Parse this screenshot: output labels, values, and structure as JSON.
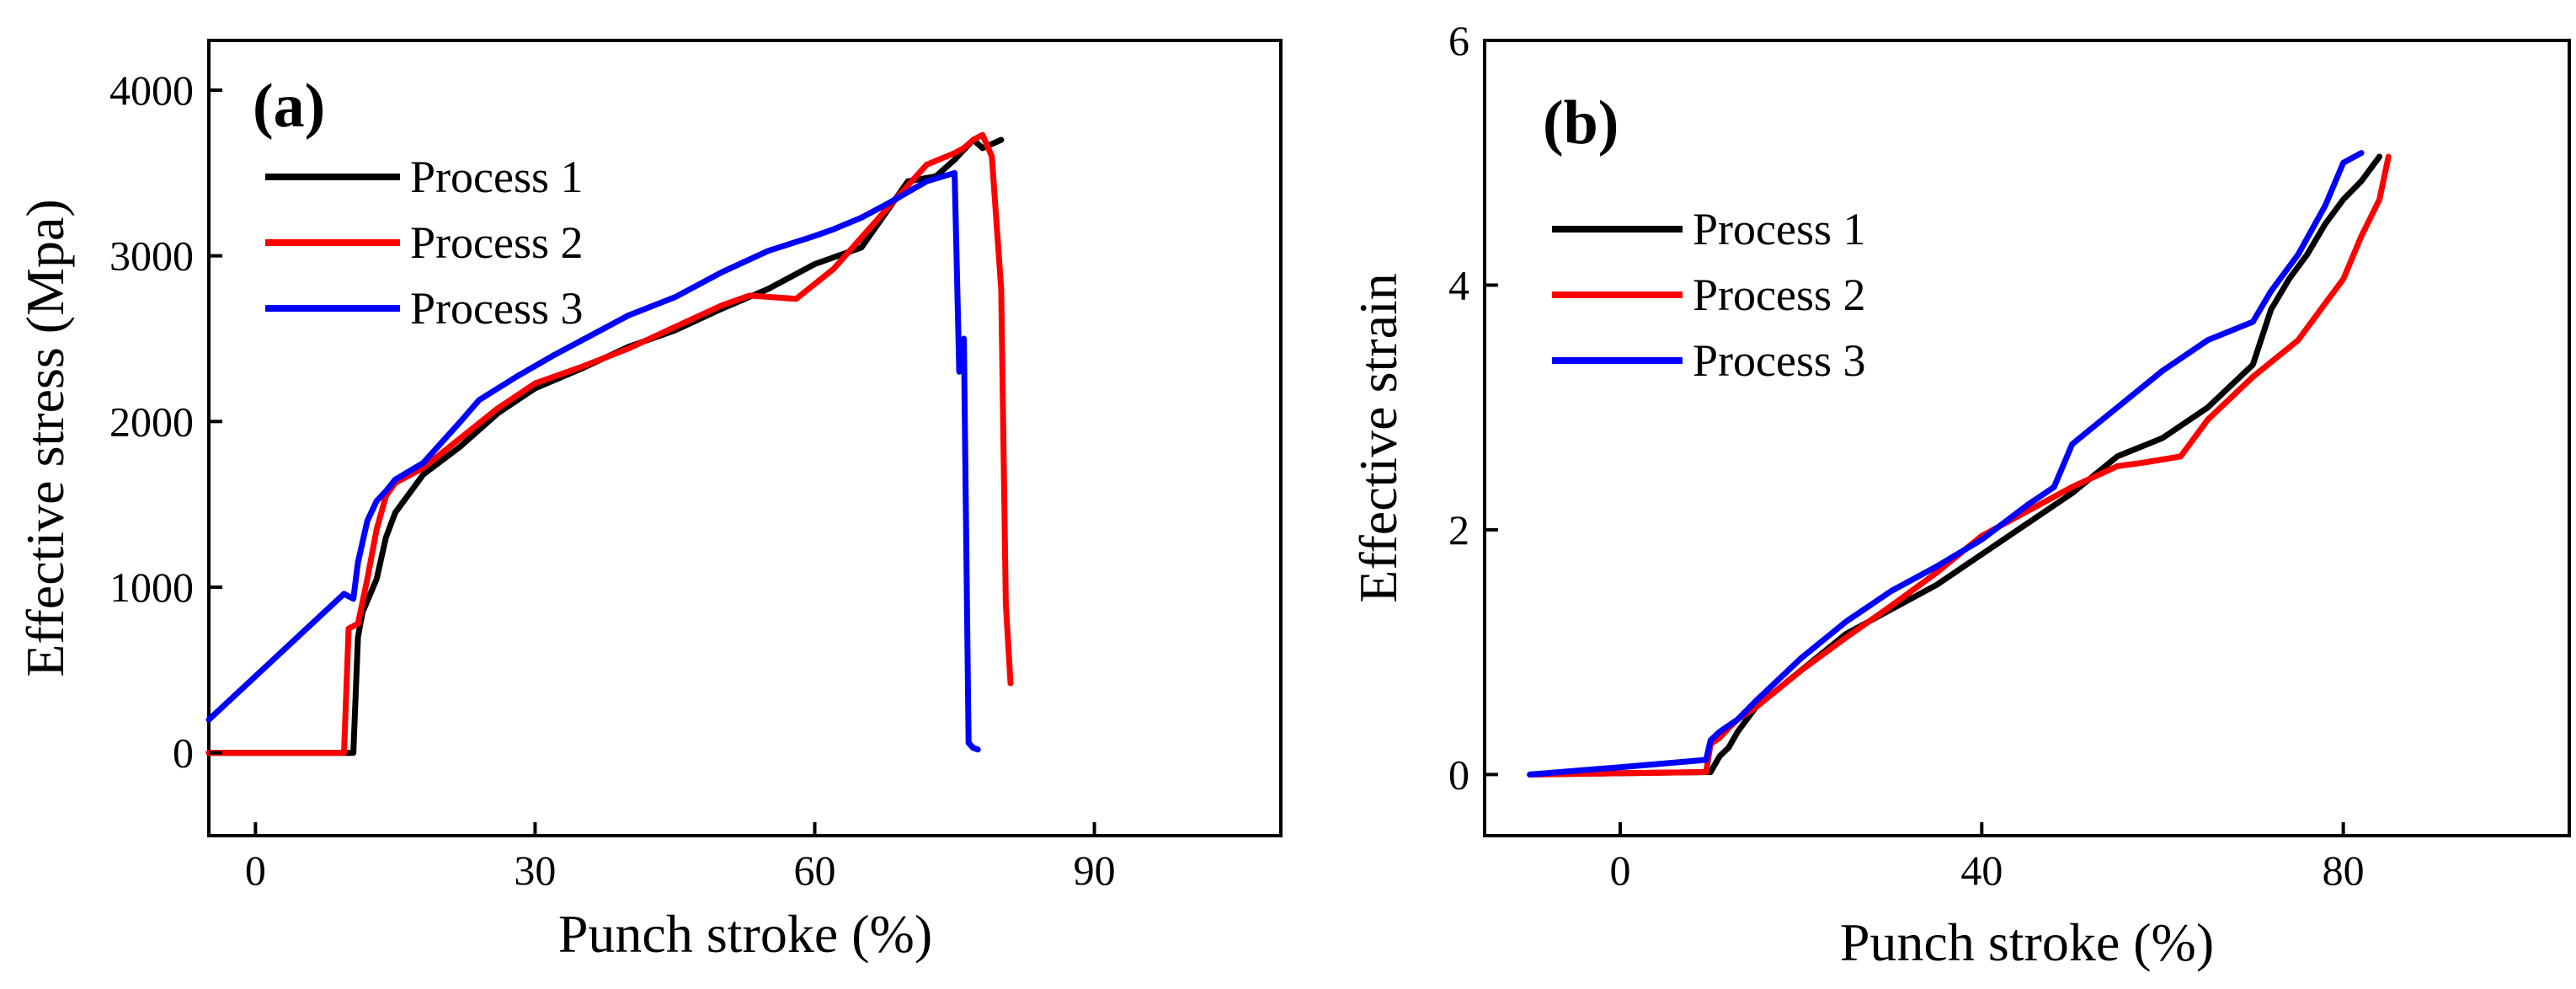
{
  "chart_data": [
    {
      "type": "line",
      "panel_label": "(a)",
      "xlabel": "Punch stroke (%)",
      "ylabel": "Effective stress (Mpa)",
      "xlim": [
        -5,
        110
      ],
      "ylim": [
        -500,
        4300
      ],
      "xticks": [
        0,
        30,
        60,
        90
      ],
      "yticks": [
        0,
        1000,
        2000,
        3000,
        4000
      ],
      "legend": {
        "placement": "top-left"
      },
      "colors": {
        "Process 1": "#000000",
        "Process 2": "#ff0000",
        "Process 3": "#0000ff"
      },
      "series": [
        {
          "name": "Process 1",
          "x": [
            -5,
            10.5,
            11,
            11.5,
            13,
            14,
            15,
            18,
            22,
            26,
            30,
            35,
            40,
            45,
            50,
            55,
            60,
            65,
            70,
            73,
            75,
            77,
            78,
            80
          ],
          "y": [
            0,
            0,
            700,
            850,
            1050,
            1300,
            1450,
            1680,
            1850,
            2050,
            2200,
            2320,
            2450,
            2550,
            2680,
            2800,
            2950,
            3050,
            3450,
            3480,
            3580,
            3700,
            3650,
            3700
          ]
        },
        {
          "name": "Process 2",
          "x": [
            -5,
            9.5,
            10,
            11,
            12,
            13,
            14,
            15,
            18,
            22,
            26,
            30,
            35,
            40,
            45,
            50,
            53,
            58,
            62,
            68,
            72,
            75,
            76,
            77,
            78,
            79,
            80,
            80.5,
            81
          ],
          "y": [
            0,
            0,
            750,
            780,
            1050,
            1350,
            1550,
            1630,
            1720,
            1900,
            2080,
            2230,
            2330,
            2440,
            2570,
            2700,
            2760,
            2740,
            2920,
            3300,
            3550,
            3620,
            3650,
            3700,
            3730,
            3600,
            2800,
            900,
            420
          ]
        },
        {
          "name": "Process 3",
          "x": [
            -5,
            9.5,
            10.5,
            11,
            12,
            13,
            14,
            15,
            18,
            22,
            24,
            28,
            32,
            36,
            40,
            45,
            50,
            55,
            60,
            62,
            65,
            68,
            72,
            75,
            75.5,
            76,
            76.5,
            77,
            77.5
          ],
          "y": [
            200,
            960,
            930,
            1150,
            1400,
            1520,
            1580,
            1650,
            1750,
            2000,
            2130,
            2270,
            2400,
            2520,
            2640,
            2750,
            2900,
            3030,
            3120,
            3160,
            3230,
            3320,
            3450,
            3500,
            2300,
            2500,
            60,
            30,
            20
          ]
        }
      ]
    },
    {
      "type": "line",
      "panel_label": "(b)",
      "xlabel": "Punch stroke (%)",
      "ylabel": "Effective strain",
      "xlim": [
        -15,
        105
      ],
      "ylim": [
        -0.5,
        6
      ],
      "xticks": [
        0,
        40,
        80
      ],
      "yticks": [
        0,
        2,
        4,
        6
      ],
      "legend": {
        "placement": "top-left"
      },
      "colors": {
        "Process 1": "#000000",
        "Process 2": "#ff0000",
        "Process 3": "#0000ff"
      },
      "series": [
        {
          "name": "Process 1",
          "x": [
            -10,
            0,
            10,
            11,
            12,
            13,
            15,
            20,
            25,
            30,
            35,
            40,
            45,
            50,
            55,
            60,
            65,
            70,
            72,
            74,
            76,
            78,
            80,
            82,
            84
          ],
          "y": [
            0,
            0.01,
            0.02,
            0.15,
            0.22,
            0.35,
            0.55,
            0.85,
            1.15,
            1.35,
            1.55,
            1.8,
            2.05,
            2.3,
            2.6,
            2.75,
            3.0,
            3.35,
            3.8,
            4.05,
            4.25,
            4.5,
            4.7,
            4.85,
            5.05
          ]
        },
        {
          "name": "Process 2",
          "x": [
            -10,
            0,
            9.5,
            10,
            11,
            12,
            13,
            15,
            20,
            25,
            30,
            35,
            40,
            45,
            50,
            55,
            58,
            62,
            65,
            70,
            75,
            78,
            80,
            82,
            84,
            85
          ],
          "y": [
            0,
            0.01,
            0.02,
            0.25,
            0.3,
            0.38,
            0.45,
            0.55,
            0.85,
            1.12,
            1.38,
            1.65,
            1.95,
            2.15,
            2.35,
            2.52,
            2.55,
            2.6,
            2.9,
            3.25,
            3.55,
            3.85,
            4.05,
            4.4,
            4.7,
            5.05
          ]
        },
        {
          "name": "Process 3",
          "x": [
            -10,
            0,
            9.5,
            10,
            11,
            13,
            15,
            20,
            25,
            30,
            35,
            40,
            45,
            48,
            50,
            52,
            55,
            60,
            65,
            70,
            72,
            75,
            78,
            80,
            82
          ],
          "y": [
            0,
            0.06,
            0.12,
            0.28,
            0.35,
            0.45,
            0.6,
            0.95,
            1.25,
            1.5,
            1.7,
            1.92,
            2.2,
            2.35,
            2.7,
            2.82,
            3.0,
            3.3,
            3.55,
            3.7,
            3.95,
            4.25,
            4.65,
            5.0,
            5.08
          ]
        }
      ]
    }
  ]
}
